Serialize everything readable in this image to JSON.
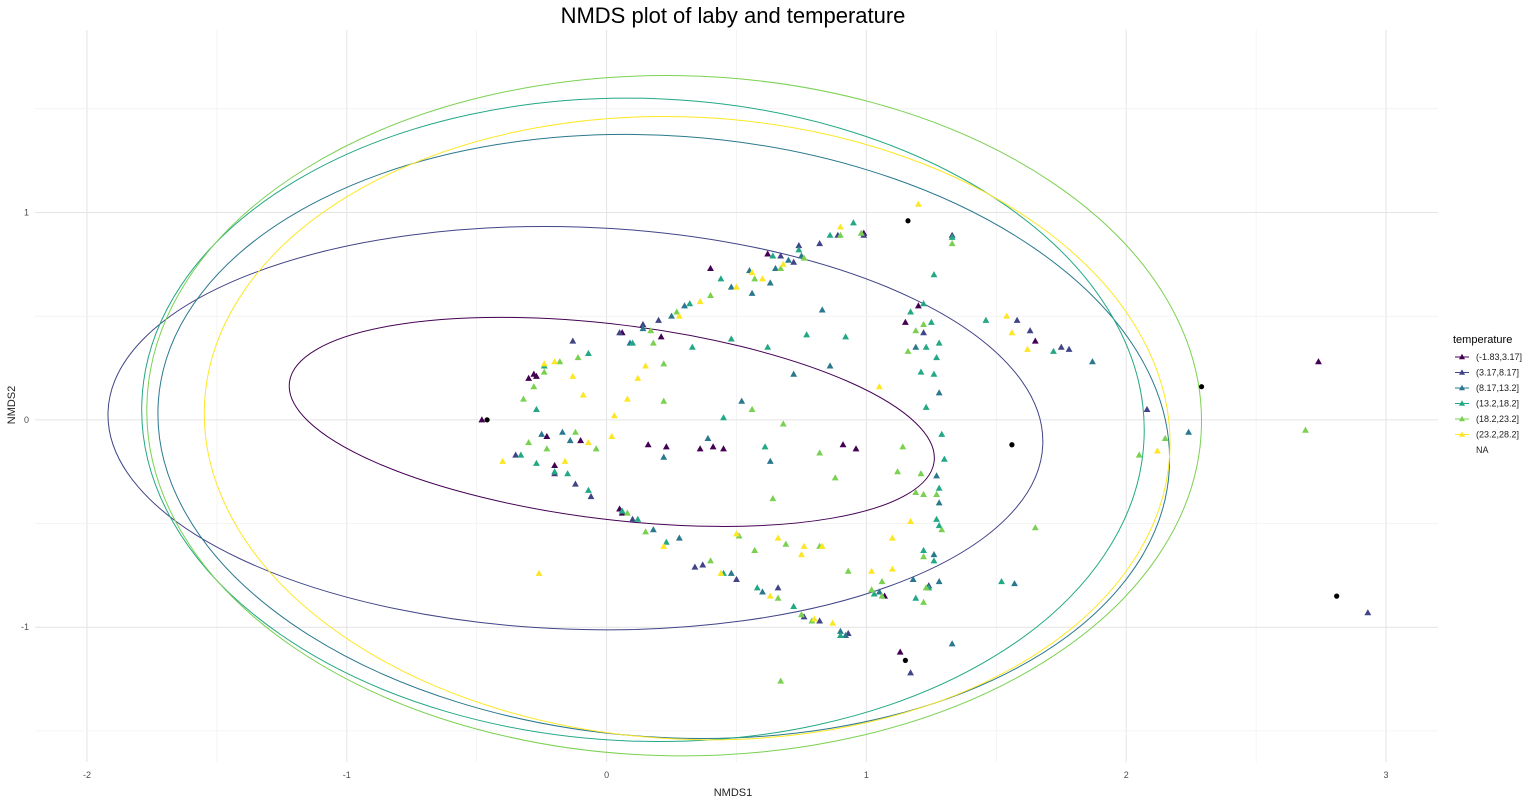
{
  "chart_data": {
    "type": "scatter",
    "title": "NMDS plot of laby and temperature",
    "xlabel": "NMDS1",
    "ylabel": "NMDS2",
    "xlim": [
      -2.2,
      3.2
    ],
    "ylim": [
      -1.65,
      1.88
    ],
    "x_ticks": [
      -2,
      -1,
      0,
      1,
      2,
      3
    ],
    "x_tick_labels": [
      "-2",
      "-1",
      "0",
      "1",
      "2",
      "3"
    ],
    "y_ticks": [
      -1,
      0,
      1
    ],
    "y_tick_labels": [
      "-1",
      "0",
      "1"
    ],
    "grid": true,
    "legend": {
      "title": "temperature",
      "position": "right",
      "entries": [
        "(-1.83,3.17]",
        "(3.17,8.17]",
        "(8.17,13.2]",
        "(13.2,18.2]",
        "(18.2,23.2]",
        "(23.2,28.2]",
        "NA"
      ]
    },
    "colors": [
      "#440154",
      "#414487",
      "#2a788e",
      "#22a884",
      "#7ad151",
      "#fde725",
      "#000000"
    ],
    "ellipses": [
      {
        "series": 0,
        "cx": 0.02,
        "cy": -0.01,
        "rx": 1.25,
        "ry": 0.47,
        "angle": -7
      },
      {
        "series": 1,
        "cx": -0.12,
        "cy": -0.04,
        "rx": 1.8,
        "ry": 0.97,
        "angle": -2
      },
      {
        "series": 2,
        "cx": 0.22,
        "cy": -0.08,
        "rx": 1.95,
        "ry": 1.45,
        "angle": -4
      },
      {
        "series": 3,
        "cx": 0.14,
        "cy": 0.0,
        "rx": 1.93,
        "ry": 1.55,
        "angle": -2
      },
      {
        "series": 4,
        "cx": 0.26,
        "cy": 0.02,
        "rx": 2.03,
        "ry": 1.64,
        "angle": -1
      },
      {
        "series": 5,
        "cx": 0.31,
        "cy": -0.04,
        "rx": 1.86,
        "ry": 1.5,
        "angle": -3
      }
    ],
    "series": [
      {
        "name": "(-1.83,3.17]",
        "points": [
          [
            -0.48,
            0.0
          ],
          [
            -0.28,
            0.22
          ],
          [
            -0.27,
            0.21
          ],
          [
            -0.3,
            0.2
          ],
          [
            -0.23,
            -0.08
          ],
          [
            -0.1,
            -0.1
          ],
          [
            -0.2,
            -0.22
          ],
          [
            0.05,
            -0.43
          ],
          [
            0.16,
            -0.12
          ],
          [
            0.21,
            0.4
          ],
          [
            0.06,
            0.42
          ],
          [
            0.06,
            -0.45
          ],
          [
            0.23,
            -0.13
          ],
          [
            0.36,
            -0.14
          ],
          [
            0.41,
            -0.13
          ],
          [
            0.45,
            -0.14
          ],
          [
            0.96,
            -0.14
          ],
          [
            0.91,
            -0.12
          ],
          [
            1.15,
            0.47
          ],
          [
            1.13,
            -1.12
          ],
          [
            0.99,
            0.9
          ],
          [
            0.4,
            0.73
          ],
          [
            0.62,
            0.8
          ],
          [
            1.2,
            0.55
          ],
          [
            1.65,
            0.38
          ],
          [
            2.74,
            0.28
          ],
          [
            1.07,
            -0.85
          ]
        ]
      },
      {
        "name": "(3.17,8.17]",
        "points": [
          [
            -0.35,
            -0.17
          ],
          [
            -0.2,
            -0.26
          ],
          [
            -0.12,
            -0.31
          ],
          [
            -0.06,
            -0.37
          ],
          [
            0.1,
            -0.48
          ],
          [
            0.34,
            -0.71
          ],
          [
            0.5,
            -0.77
          ],
          [
            0.66,
            -0.81
          ],
          [
            0.76,
            -0.95
          ],
          [
            0.82,
            -0.97
          ],
          [
            0.74,
            0.84
          ],
          [
            0.82,
            0.85
          ],
          [
            0.89,
            0.89
          ],
          [
            0.99,
            0.89
          ],
          [
            0.67,
            0.79
          ],
          [
            0.2,
            0.48
          ],
          [
            0.14,
            0.46
          ],
          [
            0.05,
            0.42
          ],
          [
            -0.13,
            0.38
          ],
          [
            1.22,
            0.42
          ],
          [
            1.33,
            0.89
          ],
          [
            1.58,
            0.48
          ],
          [
            1.63,
            0.43
          ],
          [
            1.75,
            0.35
          ],
          [
            1.78,
            0.34
          ],
          [
            2.08,
            0.05
          ],
          [
            2.93,
            -0.93
          ],
          [
            1.17,
            -1.22
          ],
          [
            0.72,
            0.76
          ],
          [
            0.37,
            -0.7
          ],
          [
            0.93,
            -1.03
          ],
          [
            1.24,
            -0.8
          ]
        ]
      },
      {
        "name": "(8.17,13.2]",
        "points": [
          [
            -0.25,
            -0.07
          ],
          [
            -0.17,
            -0.06
          ],
          [
            -0.14,
            -0.1
          ],
          [
            0.09,
            0.37
          ],
          [
            0.14,
            0.44
          ],
          [
            0.25,
            0.5
          ],
          [
            0.3,
            0.55
          ],
          [
            0.48,
            0.64
          ],
          [
            0.55,
            0.72
          ],
          [
            0.65,
            0.73
          ],
          [
            0.75,
            0.79
          ],
          [
            0.6,
            -0.83
          ],
          [
            0.48,
            -0.74
          ],
          [
            0.28,
            -0.57
          ],
          [
            0.18,
            -0.53
          ],
          [
            0.92,
            -1.04
          ],
          [
            0.9,
            -1.02
          ],
          [
            1.05,
            -0.83
          ],
          [
            1.18,
            -0.77
          ],
          [
            1.27,
            -0.27
          ],
          [
            1.28,
            -0.4
          ],
          [
            1.26,
            -0.65
          ],
          [
            1.28,
            -0.78
          ],
          [
            1.33,
            -1.08
          ],
          [
            1.57,
            -0.79
          ],
          [
            1.87,
            0.28
          ],
          [
            2.24,
            -0.06
          ],
          [
            0.83,
            0.53
          ],
          [
            0.56,
            0.61
          ],
          [
            0.63,
            0.66
          ],
          [
            0.7,
            0.77
          ],
          [
            0.22,
            -0.18
          ],
          [
            0.39,
            -0.09
          ],
          [
            0.63,
            -0.2
          ],
          [
            0.52,
            0.09
          ],
          [
            0.72,
            0.22
          ],
          [
            0.86,
            0.26
          ],
          [
            1.19,
            0.35
          ],
          [
            1.28,
            0.13
          ]
        ]
      },
      {
        "name": "(13.2,18.2]",
        "points": [
          [
            -0.33,
            -0.17
          ],
          [
            -0.27,
            -0.21
          ],
          [
            -0.2,
            -0.25
          ],
          [
            -0.15,
            -0.26
          ],
          [
            -0.07,
            -0.34
          ],
          [
            0.06,
            -0.44
          ],
          [
            0.12,
            -0.48
          ],
          [
            0.23,
            -0.59
          ],
          [
            0.45,
            -0.74
          ],
          [
            0.58,
            -0.81
          ],
          [
            0.72,
            -0.9
          ],
          [
            0.9,
            -1.04
          ],
          [
            1.03,
            -0.84
          ],
          [
            1.19,
            -0.86
          ],
          [
            1.24,
            -0.81
          ],
          [
            1.26,
            -0.68
          ],
          [
            1.27,
            -0.48
          ],
          [
            1.28,
            -0.33
          ],
          [
            1.3,
            -0.19
          ],
          [
            1.29,
            -0.07
          ],
          [
            1.23,
            0.06
          ],
          [
            1.26,
            0.22
          ],
          [
            1.28,
            0.37
          ],
          [
            1.25,
            0.47
          ],
          [
            1.22,
            0.56
          ],
          [
            1.26,
            0.7
          ],
          [
            1.33,
            0.88
          ],
          [
            1.46,
            0.48
          ],
          [
            0.95,
            0.95
          ],
          [
            0.86,
            0.89
          ],
          [
            0.74,
            0.82
          ],
          [
            0.64,
            0.79
          ],
          [
            0.44,
            0.68
          ],
          [
            0.32,
            0.56
          ],
          [
            0.1,
            0.37
          ],
          [
            -0.07,
            0.32
          ],
          [
            -0.24,
            0.26
          ],
          [
            -0.27,
            0.05
          ],
          [
            0.48,
            0.39
          ],
          [
            0.62,
            0.35
          ],
          [
            0.92,
            0.4
          ],
          [
            1.17,
            0.52
          ],
          [
            1.23,
            0.35
          ],
          [
            1.27,
            0.3
          ],
          [
            1.21,
            0.23
          ],
          [
            0.77,
            0.41
          ],
          [
            0.33,
            0.35
          ],
          [
            0.45,
            0.01
          ],
          [
            0.61,
            -0.13
          ],
          [
            1.22,
            -0.63
          ],
          [
            1.28,
            -0.51
          ],
          [
            1.72,
            0.33
          ],
          [
            1.52,
            -0.78
          ]
        ]
      },
      {
        "name": "(18.2,23.2]",
        "points": [
          [
            -0.18,
            0.28
          ],
          [
            -0.28,
            0.16
          ],
          [
            -0.32,
            0.1
          ],
          [
            -0.3,
            -0.11
          ],
          [
            -0.23,
            -0.14
          ],
          [
            -0.12,
            -0.06
          ],
          [
            -0.04,
            -0.14
          ],
          [
            0.08,
            -0.45
          ],
          [
            0.15,
            -0.54
          ],
          [
            0.4,
            -0.68
          ],
          [
            0.66,
            -0.86
          ],
          [
            0.75,
            -0.94
          ],
          [
            0.79,
            -0.97
          ],
          [
            1.02,
            -0.82
          ],
          [
            1.06,
            -0.85
          ],
          [
            1.22,
            -0.88
          ],
          [
            1.23,
            -0.81
          ],
          [
            1.22,
            -0.66
          ],
          [
            1.29,
            -0.53
          ],
          [
            1.27,
            -0.36
          ],
          [
            1.21,
            -0.26
          ],
          [
            1.14,
            -0.13
          ],
          [
            1.16,
            0.33
          ],
          [
            1.19,
            0.43
          ],
          [
            1.22,
            0.46
          ],
          [
            1.33,
            0.85
          ],
          [
            0.98,
            0.9
          ],
          [
            0.9,
            0.89
          ],
          [
            0.76,
            0.78
          ],
          [
            0.67,
            0.73
          ],
          [
            0.57,
            0.68
          ],
          [
            0.4,
            0.6
          ],
          [
            0.27,
            0.52
          ],
          [
            0.17,
            0.43
          ],
          [
            -0.11,
            0.3
          ],
          [
            -0.24,
            0.23
          ],
          [
            0.18,
            0.37
          ],
          [
            0.22,
            0.27
          ],
          [
            0.22,
            0.09
          ],
          [
            0.56,
            0.05
          ],
          [
            0.68,
            -0.02
          ],
          [
            1.12,
            -0.25
          ],
          [
            1.19,
            -0.35
          ],
          [
            1.22,
            -0.36
          ],
          [
            0.82,
            -0.16
          ],
          [
            0.88,
            -0.28
          ],
          [
            0.64,
            -0.38
          ],
          [
            0.51,
            -0.56
          ],
          [
            0.57,
            -0.63
          ],
          [
            0.69,
            -0.6
          ],
          [
            0.82,
            -0.61
          ],
          [
            0.93,
            -0.73
          ],
          [
            1.06,
            -0.78
          ],
          [
            1.65,
            -0.52
          ],
          [
            2.69,
            -0.05
          ],
          [
            2.15,
            -0.09
          ],
          [
            2.05,
            -0.17
          ],
          [
            0.67,
            -1.26
          ]
        ]
      },
      {
        "name": "(23.2,28.2]",
        "points": [
          [
            -0.24,
            0.27
          ],
          [
            -0.2,
            0.28
          ],
          [
            -0.13,
            0.21
          ],
          [
            -0.09,
            0.12
          ],
          [
            -0.16,
            -0.2
          ],
          [
            -0.07,
            -0.11
          ],
          [
            0.02,
            -0.08
          ],
          [
            0.03,
            0.02
          ],
          [
            0.08,
            0.1
          ],
          [
            0.12,
            0.2
          ],
          [
            0.15,
            0.26
          ],
          [
            0.28,
            0.5
          ],
          [
            0.36,
            0.57
          ],
          [
            0.5,
            0.64
          ],
          [
            0.56,
            0.71
          ],
          [
            0.6,
            0.68
          ],
          [
            0.68,
            0.75
          ],
          [
            0.9,
            0.93
          ],
          [
            1.2,
            1.04
          ],
          [
            1.54,
            0.5
          ],
          [
            1.56,
            0.42
          ],
          [
            1.62,
            0.34
          ],
          [
            1.05,
            0.16
          ],
          [
            1.17,
            -0.49
          ],
          [
            1.1,
            -0.57
          ],
          [
            1.1,
            -0.72
          ],
          [
            1.02,
            -0.73
          ],
          [
            0.83,
            -0.61
          ],
          [
            0.76,
            -0.61
          ],
          [
            0.5,
            -0.55
          ],
          [
            0.44,
            -0.74
          ],
          [
            0.63,
            -0.85
          ],
          [
            0.8,
            -0.96
          ],
          [
            0.87,
            -0.98
          ],
          [
            -0.26,
            -0.74
          ],
          [
            -0.4,
            -0.2
          ],
          [
            2.12,
            -0.15
          ],
          [
            0.22,
            -0.61
          ],
          [
            0.66,
            -0.57
          ],
          [
            0.75,
            -0.65
          ]
        ]
      },
      {
        "name": "NA",
        "points": [
          [
            -0.46,
            0.0
          ],
          [
            1.16,
            0.96
          ],
          [
            1.56,
            -0.12
          ],
          [
            2.29,
            0.16
          ],
          [
            2.81,
            -0.85
          ],
          [
            1.15,
            -1.16
          ]
        ]
      }
    ]
  }
}
